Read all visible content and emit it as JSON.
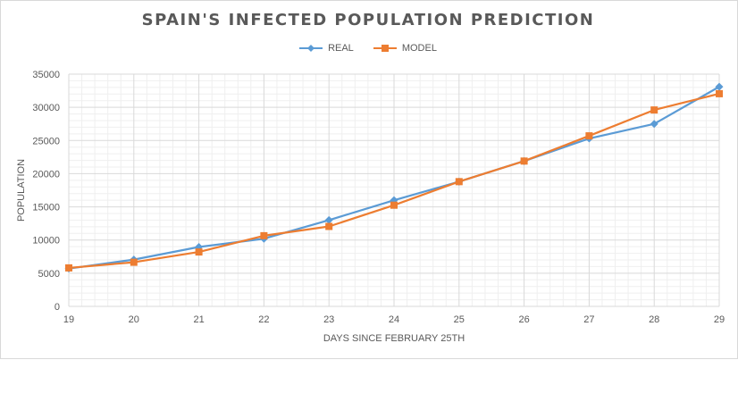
{
  "chart_data": {
    "type": "line",
    "title": "SPAIN'S INFECTED POPULATION PREDICTION",
    "xlabel": "DAYS SINCE FEBRUARY 25TH",
    "ylabel": "POPULATION",
    "x": [
      19,
      20,
      21,
      22,
      23,
      24,
      25,
      26,
      27,
      28,
      29
    ],
    "xlim": [
      19,
      29
    ],
    "ylim": [
      0,
      35000
    ],
    "y_ticks": [
      0,
      5000,
      10000,
      15000,
      20000,
      25000,
      30000,
      35000
    ],
    "x_ticks": [
      19,
      20,
      21,
      22,
      23,
      24,
      25,
      26,
      27,
      28,
      29
    ],
    "grid": true,
    "legend_position": "top-center",
    "series": [
      {
        "name": "REAL",
        "color": "#5b9bd5",
        "marker": "diamond",
        "values": [
          5700,
          7050,
          8950,
          10200,
          13000,
          16000,
          18800,
          21900,
          25300,
          27500,
          33100
        ]
      },
      {
        "name": "MODEL",
        "color": "#ed7d31",
        "marker": "square",
        "values": [
          5800,
          6650,
          8200,
          10650,
          12050,
          15250,
          18800,
          21900,
          25700,
          29600,
          32050
        ]
      }
    ]
  }
}
